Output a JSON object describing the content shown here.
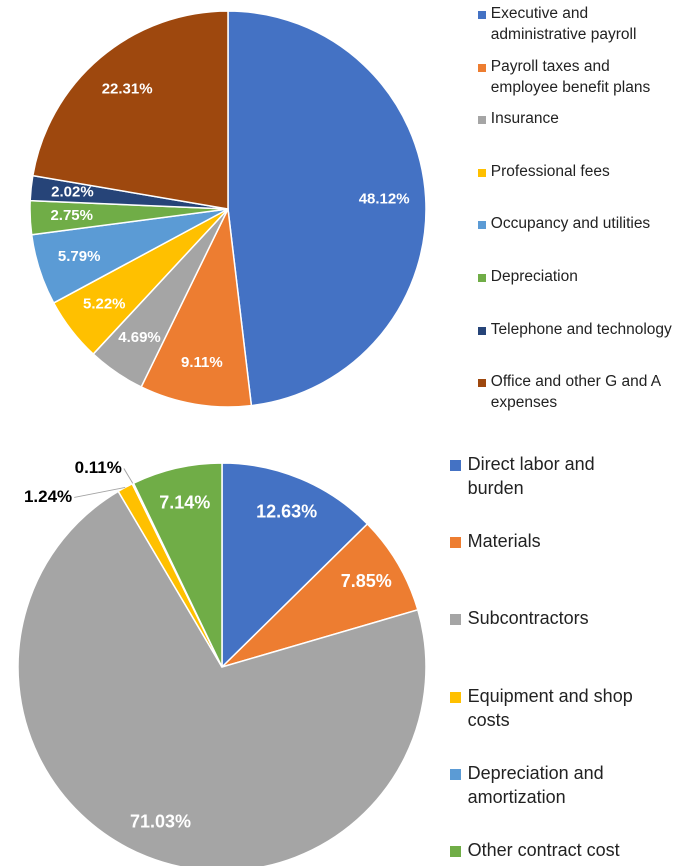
{
  "chart_data": [
    {
      "type": "pie",
      "categories": [
        "Executive and administrative payroll",
        "Payroll taxes and employee benefit plans",
        "Insurance",
        "Professional fees",
        "Occupancy and utilities",
        "Depreciation",
        "Telephone and technology",
        "Office and other G and A expenses"
      ],
      "values": [
        48.12,
        9.11,
        4.69,
        5.22,
        5.79,
        2.75,
        2.02,
        22.31
      ],
      "value_labels": [
        "48.12%",
        "9.11%",
        "4.69%",
        "5.22%",
        "5.79%",
        "2.75%",
        "2.02%",
        "22.31%"
      ],
      "colors": [
        "#4472c4",
        "#ed7d31",
        "#a5a5a5",
        "#ffc000",
        "#5b9bd5",
        "#70ad47",
        "#264478",
        "#9e480e"
      ]
    },
    {
      "type": "pie",
      "categories": [
        "Direct labor and burden",
        "Materials",
        "Subcontractors",
        "Equipment and shop costs",
        "Depreciation and amortization",
        "Other contract cost"
      ],
      "values": [
        12.63,
        7.85,
        71.03,
        1.24,
        0.11,
        7.14
      ],
      "value_labels": [
        "12.63%",
        "7.85%",
        "71.03%",
        "1.24%",
        "0.11%",
        "7.14%"
      ],
      "colors": [
        "#4472c4",
        "#ed7d31",
        "#a5a5a5",
        "#ffc000",
        "#5b9bd5",
        "#70ad47"
      ]
    }
  ]
}
